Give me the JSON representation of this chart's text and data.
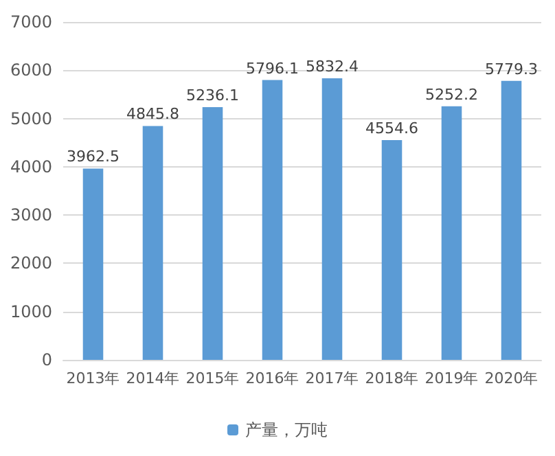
{
  "chart_data": {
    "type": "bar",
    "categories": [
      "2013年",
      "2014年",
      "2015年",
      "2016年",
      "2017年",
      "2018年",
      "2019年",
      "2020年"
    ],
    "series": [
      {
        "name": "产量，万吨",
        "color": "#5b9bd5",
        "values": [
          3962.5,
          4845.8,
          5236.1,
          5796.1,
          5832.4,
          4554.6,
          5252.2,
          5779.3
        ]
      }
    ],
    "ylim": [
      0,
      7000
    ],
    "yticks": [
      0,
      1000,
      2000,
      3000,
      4000,
      5000,
      6000,
      7000
    ],
    "grid": "y",
    "legend": "bottom",
    "data_labels": true
  }
}
